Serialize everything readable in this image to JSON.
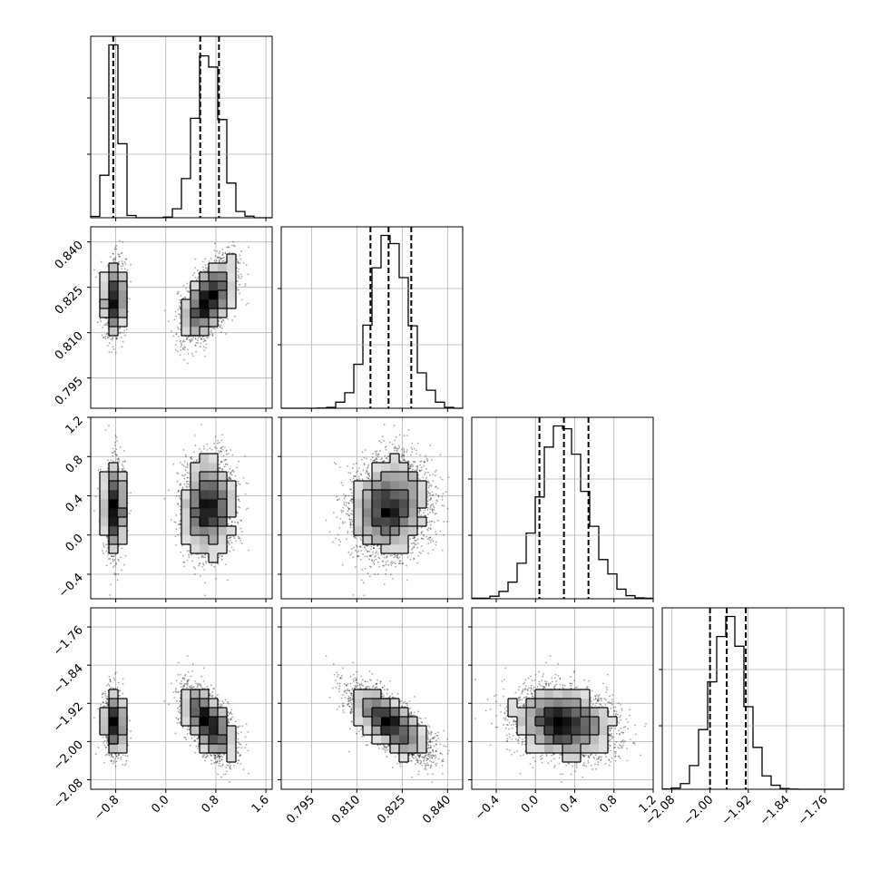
{
  "chart_data": {
    "type": "corner",
    "grid": true,
    "parameters": [
      {
        "index": 0,
        "range": [
          -1.2,
          1.7
        ],
        "ticks": [
          -0.8,
          0.0,
          0.8,
          1.6
        ],
        "tick_labels": [
          "−0.8",
          "0.0",
          "0.8",
          "1.6"
        ],
        "quantiles": [
          -0.84,
          0.55,
          0.85
        ],
        "modes": [
          {
            "center": -0.82,
            "sigma": 0.085,
            "weight": 0.34
          },
          {
            "center": 0.68,
            "sigma": 0.2,
            "weight": 0.66
          }
        ]
      },
      {
        "index": 1,
        "range": [
          0.785,
          0.845
        ],
        "ticks": [
          0.795,
          0.81,
          0.825,
          0.84
        ],
        "tick_labels": [
          "0.795",
          "0.810",
          "0.825",
          "0.840"
        ],
        "quantiles": [
          0.8145,
          0.8205,
          0.828
        ],
        "center": 0.821,
        "sigma": 0.006
      },
      {
        "index": 2,
        "range": [
          -0.65,
          1.2
        ],
        "ticks": [
          -0.4,
          0.0,
          0.4,
          0.8,
          1.2
        ],
        "tick_labels": [
          "−0.4",
          "0.0",
          "0.4",
          "0.8",
          "1.2"
        ],
        "quantiles": [
          0.04,
          0.29,
          0.54
        ],
        "center": 0.29,
        "sigma": 0.24
      },
      {
        "index": 3,
        "range": [
          -2.1,
          -1.72
        ],
        "ticks": [
          -2.08,
          -2.0,
          -1.92,
          -1.84,
          -1.76
        ],
        "tick_labels": [
          "−2.08",
          "−2.00",
          "−1.92",
          "−1.84",
          "−1.76"
        ],
        "quantiles": [
          -2.0,
          -1.965,
          -1.925
        ],
        "center": -1.962,
        "sigma": 0.032
      }
    ],
    "histogram_bins": 20,
    "pairs": [
      {
        "row": 1,
        "col": 0,
        "rho": 0.55
      },
      {
        "row": 2,
        "col": 0,
        "rho": 0.0
      },
      {
        "row": 2,
        "col": 1,
        "rho": 0.1
      },
      {
        "row": 3,
        "col": 0,
        "rho": -0.45
      },
      {
        "row": 3,
        "col": 1,
        "rho": -0.62
      },
      {
        "row": 3,
        "col": 2,
        "rho": -0.1
      }
    ]
  }
}
